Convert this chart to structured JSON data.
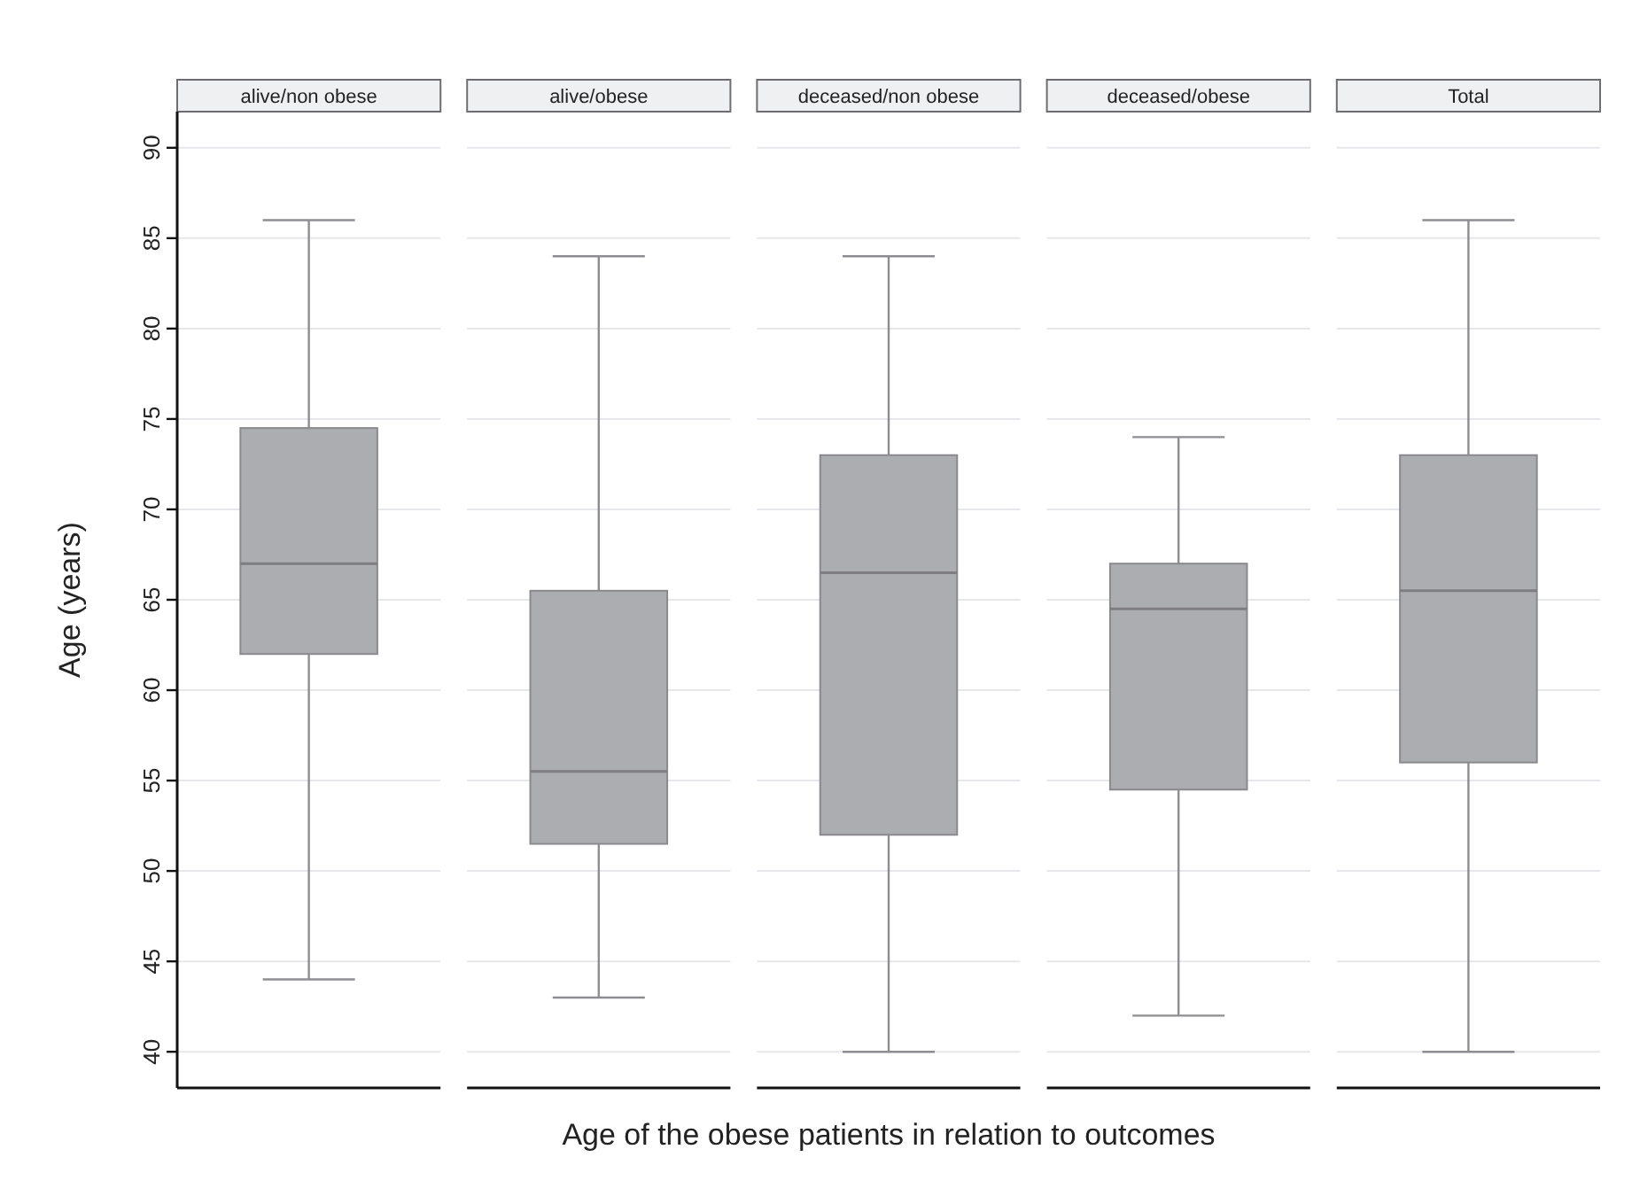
{
  "chart_data": {
    "type": "box",
    "xlabel": "Age of the obese patients in relation to outcomes",
    "ylabel": "Age (years)",
    "categories": [
      "alive/non obese",
      "alive/obese",
      "deceased/non obese",
      "deceased/obese",
      "Total"
    ],
    "boxes": [
      {
        "low": 44,
        "q1": 62,
        "median": 67,
        "q3": 74.5,
        "high": 86
      },
      {
        "low": 43,
        "q1": 51.5,
        "median": 55.5,
        "q3": 65.5,
        "high": 84
      },
      {
        "low": 40,
        "q1": 52,
        "median": 66.5,
        "q3": 73,
        "high": 84
      },
      {
        "low": 42,
        "q1": 54.5,
        "median": 64.5,
        "q3": 67,
        "high": 74
      },
      {
        "low": 40,
        "q1": 56,
        "median": 65.5,
        "q3": 73,
        "high": 86
      }
    ],
    "color": "#acadb1",
    "ylim": [
      38,
      92
    ],
    "yticks": [
      40,
      45,
      50,
      55,
      60,
      65,
      70,
      75,
      80,
      85,
      90
    ],
    "grid": true
  }
}
